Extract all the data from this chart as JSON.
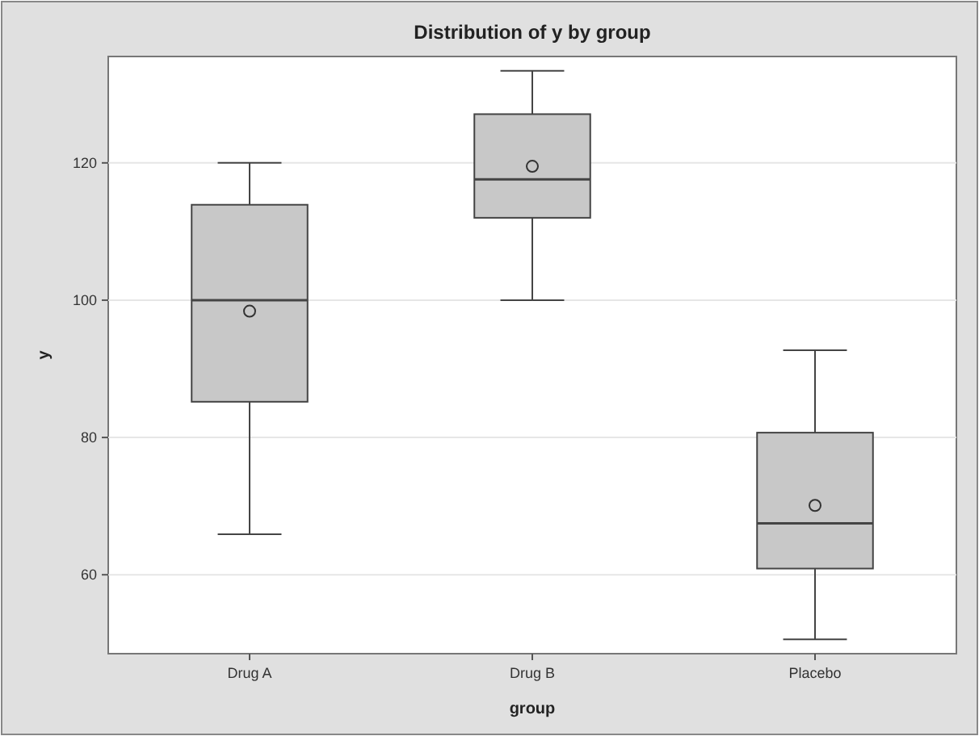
{
  "chart_data": {
    "type": "box",
    "title": "Distribution of y by group",
    "xlabel": "group",
    "ylabel": "y",
    "categories": [
      "Drug A",
      "Drug B",
      "Placebo"
    ],
    "boxes": [
      {
        "low": 65.9,
        "q1": 85.2,
        "median": 100,
        "q3": 113.9,
        "high": 120,
        "mean": 98.4
      },
      {
        "low": 100,
        "q1": 112,
        "median": 117.6,
        "q3": 127.1,
        "high": 133.4,
        "mean": 119.5
      },
      {
        "low": 50.6,
        "q1": 60.9,
        "median": 67.5,
        "q3": 80.7,
        "high": 92.7,
        "mean": 70.1
      }
    ],
    "color": "#c8c8c8",
    "ylim": [
      48.5,
      135.5
    ],
    "yticks": [
      60,
      80,
      100,
      120
    ],
    "grid": "y",
    "marker": "circle"
  }
}
